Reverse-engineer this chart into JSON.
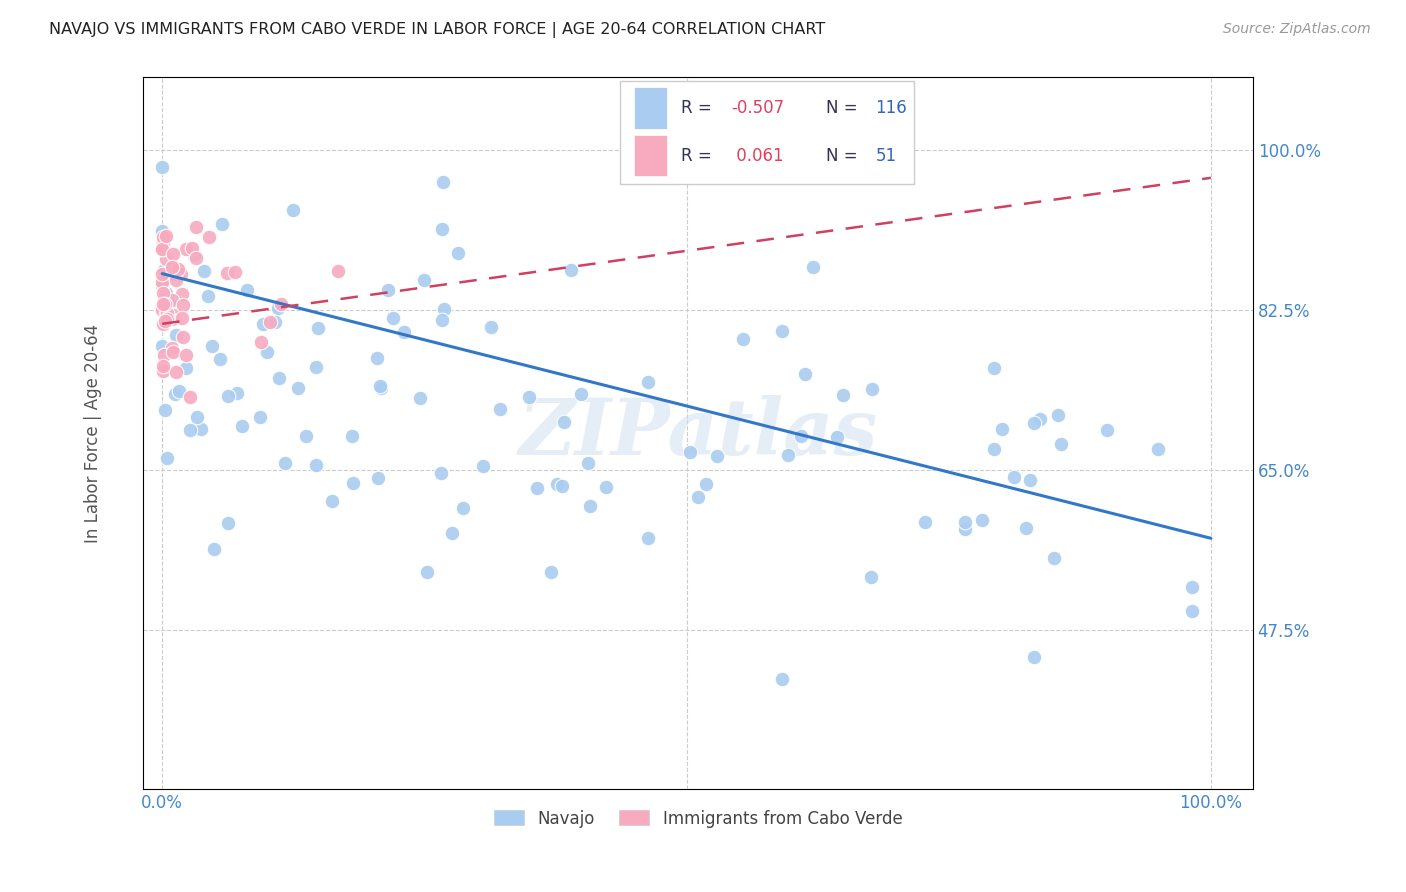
{
  "title": "NAVAJO VS IMMIGRANTS FROM CABO VERDE IN LABOR FORCE | AGE 20-64 CORRELATION CHART",
  "source": "Source: ZipAtlas.com",
  "ylabel": "In Labor Force | Age 20-64",
  "legend_label1": "Navajo",
  "legend_label2": "Immigrants from Cabo Verde",
  "r1": -0.507,
  "n1": 116,
  "r2": 0.061,
  "n2": 51,
  "color_navajo": "#aaccf0",
  "color_cabo": "#f8aabf",
  "color_trend1": "#3378c8",
  "color_trend2": "#d04060",
  "watermark": "ZIPatlas",
  "axis_label_color": "#4488cc",
  "legend_r_color": "#e04060",
  "legend_n_color": "#3366bb",
  "y_tick_values": [
    0.475,
    0.65,
    0.825,
    1.0
  ],
  "y_tick_labels": [
    "47.5%",
    "65.0%",
    "82.5%",
    "100.0%"
  ],
  "xlim": [
    0.0,
    1.0
  ],
  "ylim": [
    0.3,
    1.08
  ]
}
